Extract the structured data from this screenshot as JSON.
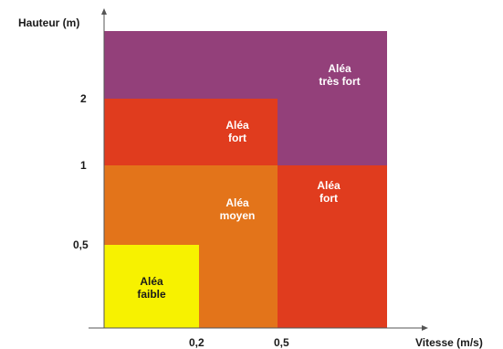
{
  "axes": {
    "y_label": "Hauteur (m)",
    "x_label": "Vitesse (m/s)",
    "y_ticks": [
      "2",
      "1",
      "0,5"
    ],
    "x_ticks": [
      "0,2",
      "0,5"
    ]
  },
  "zones": {
    "tres_fort": {
      "line1": "Aléa",
      "line2": "très fort",
      "color": "#93407a"
    },
    "fort_top": {
      "line1": "Aléa",
      "line2": "fort",
      "color": "#e03c1e"
    },
    "fort_right": {
      "line1": "Aléa",
      "line2": "fort",
      "color": "#e03c1e"
    },
    "moyen": {
      "line1": "Aléa",
      "line2": "moyen",
      "color": "#e3741a"
    },
    "faible": {
      "line1": "Aléa",
      "line2": "faible",
      "color": "#f7f200"
    }
  }
}
